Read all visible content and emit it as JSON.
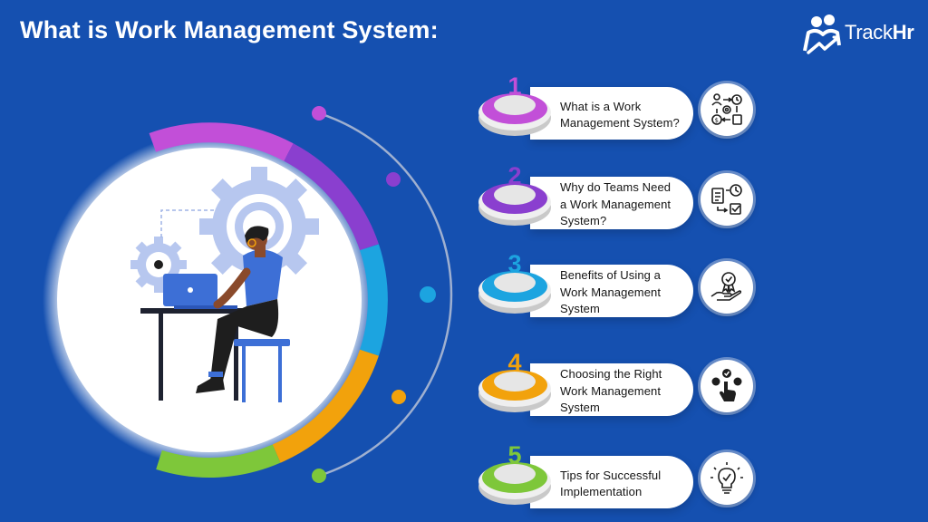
{
  "title": "What is Work Management System:",
  "brand": {
    "name_light": "Track",
    "name_bold": "Hr"
  },
  "steps": [
    {
      "number": "1",
      "lines": [
        "What is a Work",
        "Management System?"
      ],
      "color": "#c24fd8",
      "icon": "workflow-cycle-icon"
    },
    {
      "number": "2",
      "lines": [
        "Why do Teams Need",
        "a Work Management",
        "System?"
      ],
      "color": "#8a3fcf",
      "icon": "task-checklist-icon"
    },
    {
      "number": "3",
      "lines": [
        "Benefits of Using a",
        "Work Management",
        "System"
      ],
      "color": "#1ca4e0",
      "icon": "award-hand-icon"
    },
    {
      "number": "4",
      "lines": [
        "Choosing the Right",
        "Work Management",
        "System"
      ],
      "color": "#f2a20c",
      "icon": "hand-choice-icon"
    },
    {
      "number": "5",
      "lines": [
        "Tips for Successful",
        "Implementation"
      ],
      "color": "#7ec73a",
      "icon": "lightbulb-icon"
    }
  ],
  "colors": {
    "background": "#1550b0",
    "arc_magenta": "#c24fd8",
    "arc_purple": "#8a3fcf",
    "arc_blue": "#1ca4e0",
    "arc_orange": "#f2a20c",
    "arc_green": "#7ec73a"
  }
}
